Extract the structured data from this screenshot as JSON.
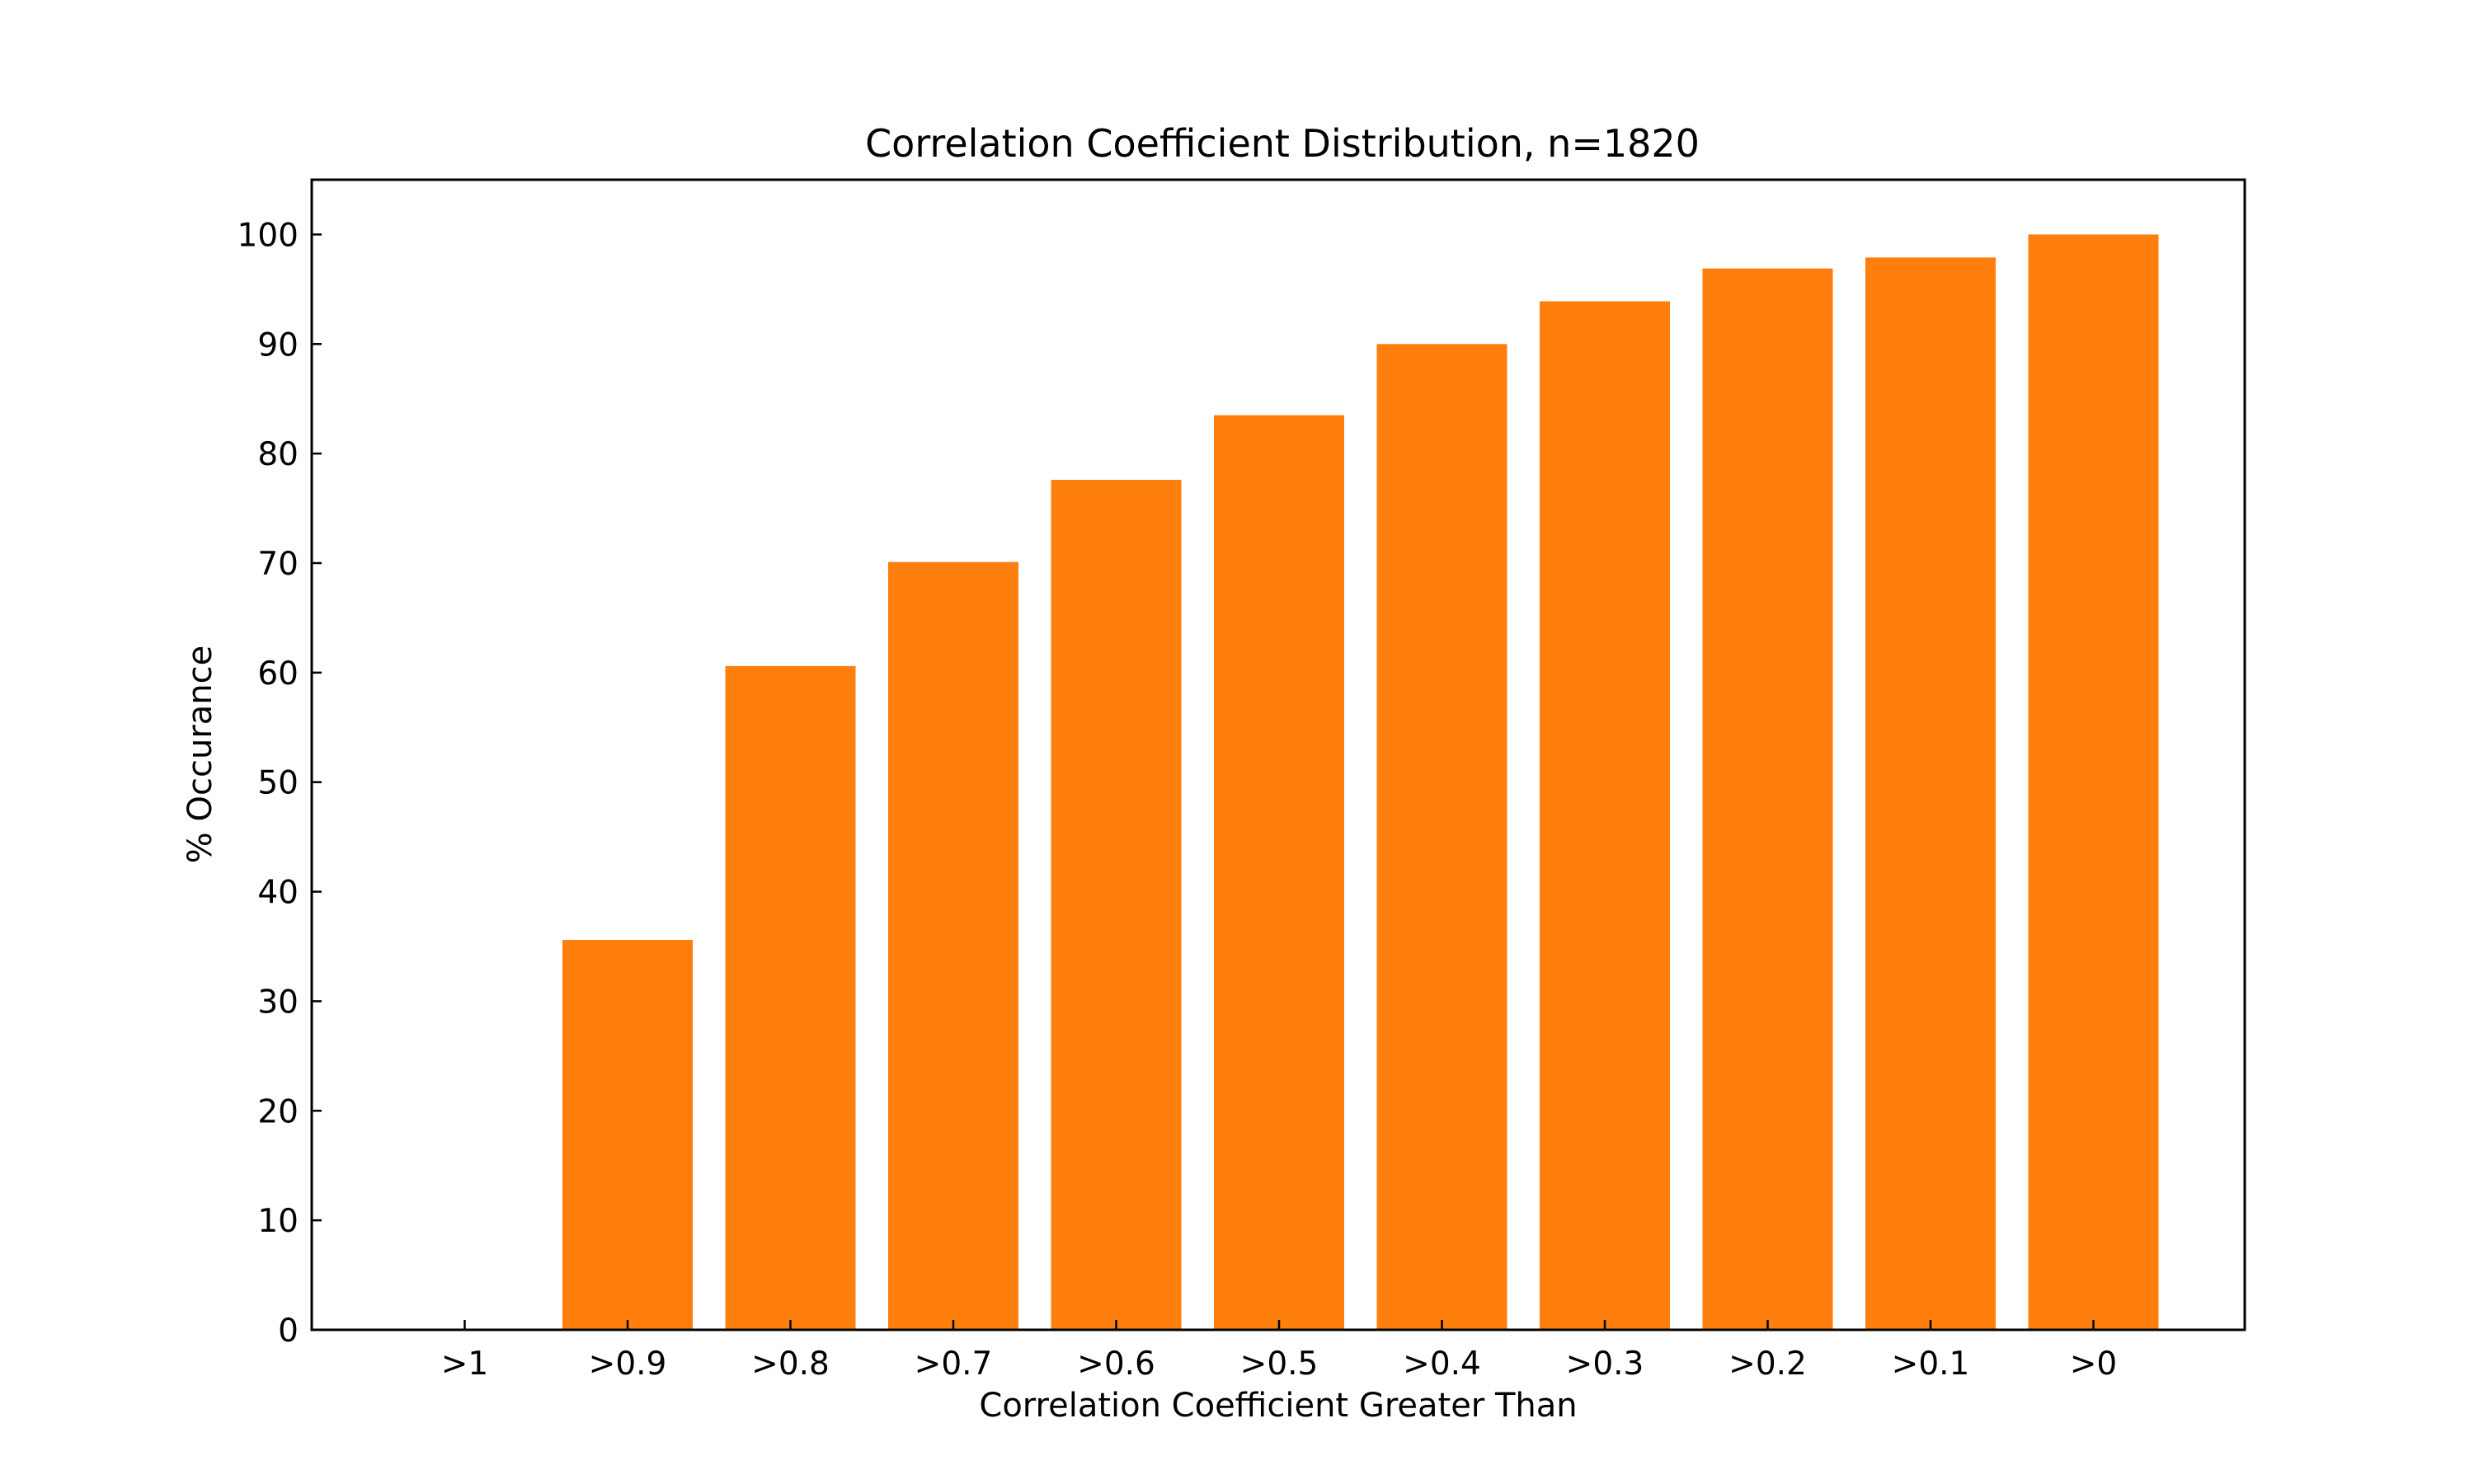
{
  "chart_data": {
    "type": "bar",
    "title": "Correlation Coefficient Distribution, n=1820",
    "xlabel": "Correlation Coefficient Greater Than",
    "ylabel": "% Occurance",
    "categories": [
      ">1",
      ">0.9",
      ">0.8",
      ">0.7",
      ">0.6",
      ">0.5",
      ">0.4",
      ">0.3",
      ">0.2",
      ">0.1",
      ">0"
    ],
    "values": [
      0,
      35.6,
      60.6,
      70.1,
      77.6,
      83.5,
      90.0,
      93.9,
      96.9,
      97.9,
      100.0
    ],
    "ylim": [
      0,
      105
    ],
    "yticks": [
      0,
      10,
      20,
      30,
      40,
      50,
      60,
      70,
      80,
      90,
      100
    ],
    "bar_color": "#ff7f0e",
    "grid": false,
    "tick_direction": "in"
  }
}
